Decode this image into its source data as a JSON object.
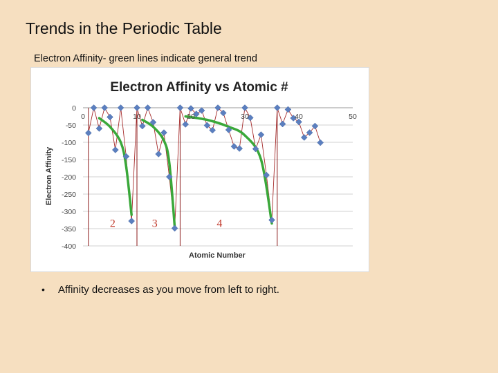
{
  "slide": {
    "title": "Trends in the Periodic Table",
    "subtitle": "Electron Affinity- green lines indicate general trend",
    "bullets": [
      "Affinity decreases as you move from left to right."
    ]
  },
  "colors": {
    "background": "#f6dfc0",
    "marker": "#5b7fbf",
    "series_line": "#a52a2a",
    "trend_line": "#3aa83a",
    "period_line": "#8b1a1a",
    "period_label": "#c0392b",
    "gridline": "#d0d0d0"
  },
  "chart_data": {
    "type": "scatter",
    "title": "Electron Affinity vs Atomic #",
    "xlabel": "Atomic Number",
    "ylabel": "Electron Affinity",
    "xlim": [
      0,
      50
    ],
    "ylim": [
      -400,
      0
    ],
    "x_ticks": [
      0,
      10,
      20,
      30,
      40,
      50
    ],
    "y_ticks": [
      0,
      -50,
      -100,
      -150,
      -200,
      -250,
      -300,
      -350,
      -400
    ],
    "grid": true,
    "legend": "none",
    "series": [
      {
        "x": [
          1,
          2,
          3,
          4,
          5,
          6,
          7,
          8,
          9,
          10,
          11,
          12,
          13,
          14,
          15,
          16,
          17,
          18,
          19,
          20,
          21,
          22,
          23,
          24,
          25,
          26,
          27,
          28,
          29,
          30,
          31,
          32,
          33,
          34,
          35,
          36,
          37,
          38,
          39,
          40,
          41,
          42,
          43,
          44
        ],
        "y": [
          -73,
          0,
          -60,
          0,
          -27,
          -122,
          0,
          -141,
          -328,
          0,
          -53,
          0,
          -42,
          -134,
          -72,
          -200,
          -349,
          0,
          -48,
          -2,
          -18,
          -8,
          -51,
          -65,
          0,
          -15,
          -64,
          -112,
          -118,
          0,
          -29,
          -119,
          -78,
          -195,
          -325,
          0,
          -47,
          -5,
          -30,
          -41,
          -86,
          -72,
          -53,
          -101
        ]
      }
    ],
    "trend_lines": [
      {
        "x": [
          3,
          5,
          7,
          8,
          9
        ],
        "y": [
          -30,
          -55,
          -100,
          -170,
          -310
        ]
      },
      {
        "x": [
          11,
          13,
          15,
          16,
          17
        ],
        "y": [
          -35,
          -55,
          -95,
          -160,
          -345
        ]
      },
      {
        "x": [
          19,
          23,
          27,
          30,
          33,
          35
        ],
        "y": [
          -25,
          -35,
          -55,
          -80,
          -150,
          -335
        ]
      }
    ],
    "period_boundaries": [
      1,
      10,
      18,
      36
    ],
    "period_labels": [
      {
        "text": "2",
        "x": 5.5
      },
      {
        "text": "3",
        "x": 13.3
      },
      {
        "text": "4",
        "x": 25.3
      }
    ]
  }
}
